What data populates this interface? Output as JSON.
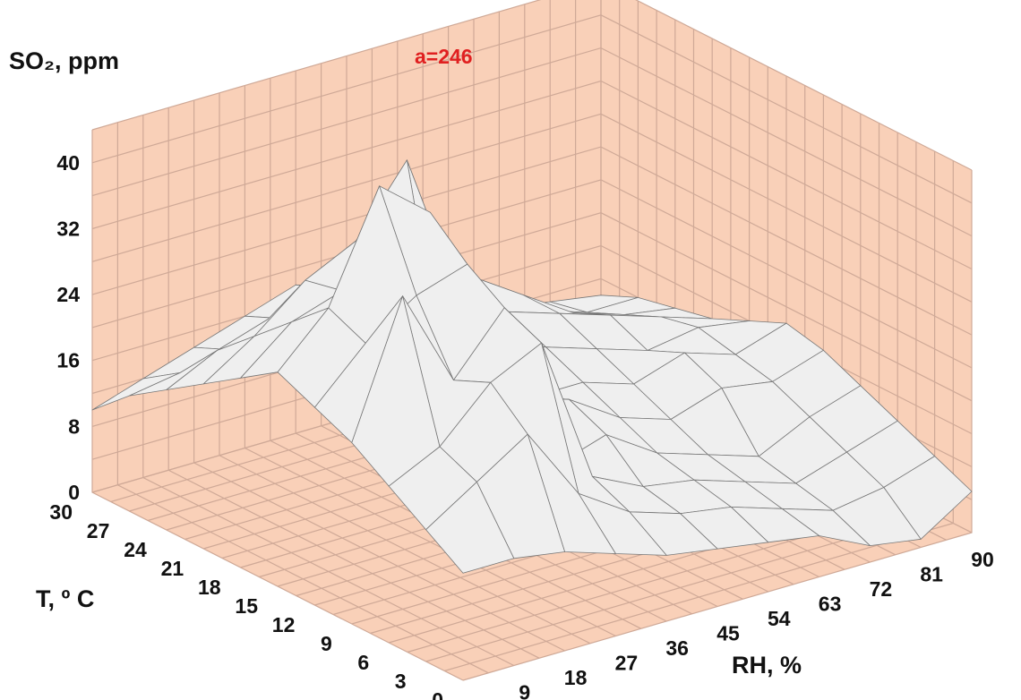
{
  "chart_data": {
    "type": "surface3d",
    "zlabel": "SO₂,  ppm",
    "xlabel": "T, º C",
    "ylabel": "RH, %",
    "z_ticks": [
      "0",
      "8",
      "16",
      "24",
      "32",
      "40"
    ],
    "x_ticks": [
      "30",
      "27",
      "24",
      "21",
      "18",
      "15",
      "12",
      "9",
      "6",
      "3",
      "0"
    ],
    "y_ticks": [
      "0",
      "9",
      "18",
      "27",
      "36",
      "45",
      "54",
      "63",
      "72",
      "81",
      "90"
    ],
    "zlim": [
      0,
      40
    ],
    "xlim": [
      0,
      30
    ],
    "ylim": [
      0,
      90
    ],
    "annotation": "a=246",
    "colors": {
      "wall": "#f9d0b8",
      "grid": "#cfa997",
      "surface": "#efefef",
      "surface_edge": "#777777",
      "annotation": "#e02020"
    },
    "grid": true,
    "rh": [
      0,
      9,
      18,
      27,
      36,
      45,
      54,
      63,
      72,
      81,
      90
    ],
    "t": [
      0,
      3,
      6,
      9,
      12,
      15,
      18,
      21,
      24,
      27,
      30
    ],
    "so2": [
      [
        13,
        13,
        12,
        10,
        8,
        7,
        6,
        5,
        2,
        1,
        5
      ],
      [
        16,
        20,
        24,
        15,
        11,
        9,
        8,
        6,
        4,
        5,
        7
      ],
      [
        19,
        22,
        28,
        31,
        13,
        10,
        9,
        7,
        5,
        7,
        9
      ],
      [
        22,
        38,
        26,
        33,
        12,
        14,
        10,
        8,
        6,
        9,
        11
      ],
      [
        24,
        30,
        34,
        36,
        18,
        16,
        12,
        10,
        12,
        11,
        13
      ],
      [
        26,
        32,
        45,
        40,
        20,
        14,
        14,
        12,
        14,
        12,
        14
      ],
      [
        23,
        28,
        30,
        26,
        16,
        18,
        16,
        14,
        12,
        13,
        12
      ],
      [
        20,
        24,
        29,
        32,
        40,
        22,
        18,
        16,
        14,
        12,
        10
      ],
      [
        17,
        20,
        22,
        25,
        28,
        24,
        20,
        16,
        12,
        10,
        9
      ],
      [
        14,
        15,
        16,
        18,
        20,
        18,
        14,
        12,
        10,
        8,
        8
      ],
      [
        10,
        12,
        14,
        16,
        18,
        14,
        12,
        10,
        8,
        7,
        6
      ]
    ]
  }
}
